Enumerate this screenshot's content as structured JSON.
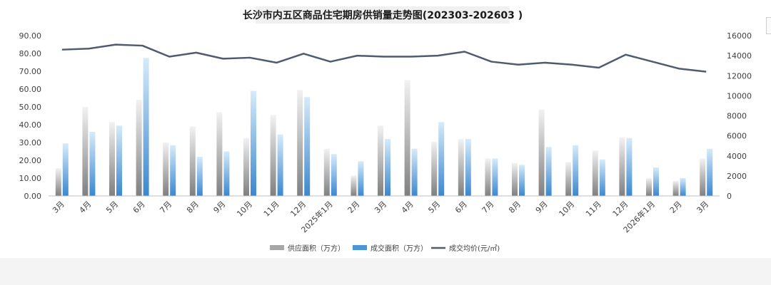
{
  "chart_data": {
    "type": "bar",
    "title": "长沙市内五区商品住宅期房供销量走势图(202303-202603 )",
    "categories": [
      "3月",
      "4月",
      "5月",
      "6月",
      "7月",
      "8月",
      "9月",
      "10月",
      "11月",
      "12月",
      "2025年1月",
      "2月",
      "3月",
      "4月",
      "5月",
      "6月",
      "7月",
      "8月",
      "9月",
      "10月",
      "11月",
      "12月",
      "2026年1月",
      "2月",
      "3月"
    ],
    "series": [
      {
        "name": "供应面积（万方）",
        "axis": "left",
        "color": "#a6a6a6",
        "values": [
          15.5,
          50.0,
          41.5,
          54.0,
          30.0,
          39.0,
          47.0,
          32.5,
          45.5,
          59.5,
          26.5,
          11.5,
          39.5,
          65.0,
          30.5,
          32.0,
          21.0,
          18.5,
          48.5,
          19.0,
          25.5,
          33.0,
          10.0,
          8.5,
          21.0
        ]
      },
      {
        "name": "成交面积（万方）",
        "axis": "left",
        "color": "#4a96d6",
        "values": [
          29.5,
          36.0,
          39.5,
          77.5,
          28.5,
          22.0,
          25.0,
          59.0,
          34.5,
          55.5,
          23.5,
          19.5,
          32.0,
          26.5,
          41.5,
          32.0,
          21.0,
          17.5,
          27.5,
          28.5,
          20.5,
          32.5,
          16.0,
          10.0,
          26.5
        ]
      },
      {
        "name": "成交均价(元/㎡)",
        "axis": "right",
        "type": "line",
        "color": "#4f5b6e",
        "values": [
          14600,
          14700,
          15100,
          15000,
          13900,
          14300,
          13700,
          13800,
          13300,
          14200,
          13400,
          14000,
          13900,
          13900,
          14000,
          14400,
          13400,
          13100,
          13300,
          13100,
          12800,
          14100,
          13400,
          12700,
          12400
        ]
      }
    ],
    "ylim_left": [
      0,
      90
    ],
    "ylim_right": [
      0,
      16000
    ],
    "yticks_left": [
      "0.00",
      "10.00",
      "20.00",
      "30.00",
      "40.00",
      "50.00",
      "60.00",
      "70.00",
      "80.00",
      "90.00"
    ],
    "yticks_right": [
      "0",
      "2000",
      "4000",
      "6000",
      "8000",
      "10000",
      "12000",
      "14000",
      "16000"
    ],
    "grid": false,
    "legend_position": "bottom"
  }
}
